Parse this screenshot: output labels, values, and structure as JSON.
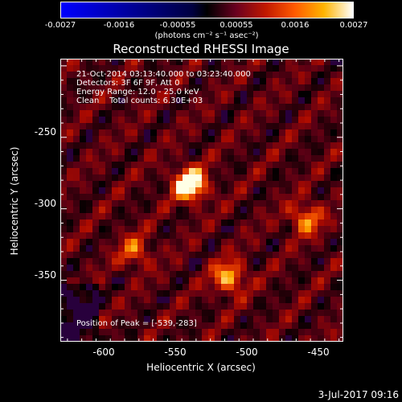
{
  "colorbar": {
    "ticks": [
      "-0.0027",
      "-0.0016",
      "-0.00055",
      "0.00055",
      "0.0016",
      "0.0027"
    ],
    "units": "(photons cm⁻² s⁻¹ asec⁻²)",
    "colors": [
      "#0000ff",
      "#000040",
      "#000000",
      "#6a0020",
      "#c01800",
      "#ff5a00",
      "#ffb400",
      "#ffffff"
    ]
  },
  "chart_data": {
    "type": "heatmap",
    "title": "Reconstructed RHESSI Image",
    "xlabel": "Heliocentric X (arcsec)",
    "ylabel": "Heliocentric Y (arcsec)",
    "xlim": [
      -630,
      -432
    ],
    "ylim": [
      -393,
      -195
    ],
    "x_ticks": [
      "-600",
      "-550",
      "-500",
      "-450"
    ],
    "y_ticks": [
      "-250",
      "-300",
      "-350"
    ],
    "sources": [
      {
        "x": -539,
        "y": -283,
        "intensity": 1.0
      },
      {
        "x": -512,
        "y": -348,
        "intensity": 0.65
      },
      {
        "x": -458,
        "y": -307,
        "intensity": 0.55
      },
      {
        "x": -578,
        "y": -330,
        "intensity": 0.45
      }
    ],
    "peak_position": [
      -539,
      -283
    ]
  },
  "info_lines": [
    "21-Oct-2014 03:13:40.000 to 03:23:40.000",
    "Detectors: 3F 6F 9F, Att 0",
    "Energy Range: 12.0 - 25.0 keV",
    "Clean    Total counts: 6.30E+03"
  ],
  "peak_text": "Position of Peak = [-539,-283]",
  "date_stamp": "3-Jul-2017 09:16"
}
